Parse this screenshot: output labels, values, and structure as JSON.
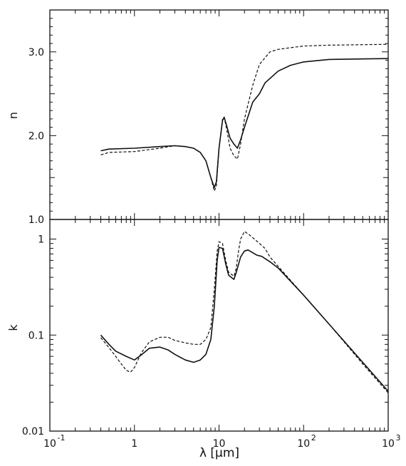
{
  "chart_data": [
    {
      "type": "line",
      "panel": "top",
      "title": "",
      "xlabel": "",
      "ylabel": "n",
      "xscale": "log",
      "yscale": "linear",
      "xlim": [
        0.1,
        1000
      ],
      "ylim": [
        1.0,
        3.5
      ],
      "yticks": [
        {
          "value": 1.0,
          "label": "1.0"
        },
        {
          "value": 2.0,
          "label": "2.0"
        },
        {
          "value": 3.0,
          "label": "3.0"
        }
      ],
      "series": [
        {
          "style": "solid",
          "points": [
            [
              0.4,
              1.82
            ],
            [
              0.5,
              1.84
            ],
            [
              1,
              1.85
            ],
            [
              2,
              1.87
            ],
            [
              3,
              1.88
            ],
            [
              4,
              1.87
            ],
            [
              5,
              1.85
            ],
            [
              6,
              1.8
            ],
            [
              7,
              1.7
            ],
            [
              8,
              1.5
            ],
            [
              8.8,
              1.38
            ],
            [
              9.3,
              1.45
            ],
            [
              10,
              1.85
            ],
            [
              11,
              2.18
            ],
            [
              11.5,
              2.22
            ],
            [
              12.3,
              2.12
            ],
            [
              13.5,
              1.97
            ],
            [
              15,
              1.9
            ],
            [
              16.5,
              1.85
            ],
            [
              18,
              1.95
            ],
            [
              20,
              2.1
            ],
            [
              25,
              2.4
            ],
            [
              30,
              2.5
            ],
            [
              35,
              2.63
            ],
            [
              50,
              2.77
            ],
            [
              70,
              2.84
            ],
            [
              100,
              2.88
            ],
            [
              200,
              2.91
            ],
            [
              1000,
              2.92
            ]
          ]
        },
        {
          "style": "dashed",
          "points": [
            [
              0.4,
              1.77
            ],
            [
              0.5,
              1.8
            ],
            [
              1,
              1.81
            ],
            [
              2,
              1.85
            ],
            [
              3,
              1.88
            ],
            [
              4,
              1.87
            ],
            [
              5,
              1.85
            ],
            [
              6,
              1.8
            ],
            [
              7,
              1.7
            ],
            [
              8,
              1.5
            ],
            [
              8.8,
              1.34
            ],
            [
              9.3,
              1.4
            ],
            [
              10,
              1.85
            ],
            [
              11,
              2.2
            ],
            [
              11.5,
              2.22
            ],
            [
              12.3,
              2.08
            ],
            [
              13.5,
              1.85
            ],
            [
              15,
              1.76
            ],
            [
              16.5,
              1.72
            ],
            [
              18,
              1.9
            ],
            [
              20,
              2.2
            ],
            [
              25,
              2.6
            ],
            [
              30,
              2.85
            ],
            [
              40,
              3.0
            ],
            [
              50,
              3.03
            ],
            [
              70,
              3.05
            ],
            [
              100,
              3.07
            ],
            [
              200,
              3.08
            ],
            [
              1000,
              3.09
            ]
          ]
        }
      ]
    },
    {
      "type": "line",
      "panel": "bottom",
      "title": "",
      "xlabel": "λ [μm]",
      "ylabel": "k",
      "xscale": "log",
      "yscale": "log",
      "xlim": [
        0.1,
        1000
      ],
      "ylim": [
        0.01,
        1.6
      ],
      "xticks": [
        {
          "value": 0.1,
          "base": "10",
          "exp": "-1"
        },
        {
          "value": 1,
          "base": "1",
          "exp": ""
        },
        {
          "value": 10,
          "base": "10",
          "exp": ""
        },
        {
          "value": 100,
          "base": "10",
          "exp": "2"
        },
        {
          "value": 1000,
          "base": "10",
          "exp": "3"
        }
      ],
      "yticks": [
        {
          "value": 0.01,
          "label": "0.01"
        },
        {
          "value": 0.1,
          "label": "0.1"
        },
        {
          "value": 1,
          "label": "1"
        }
      ],
      "series": [
        {
          "style": "solid",
          "points": [
            [
              0.4,
              0.1
            ],
            [
              0.5,
              0.08
            ],
            [
              0.6,
              0.068
            ],
            [
              0.8,
              0.06
            ],
            [
              1,
              0.055
            ],
            [
              1.2,
              0.062
            ],
            [
              1.5,
              0.073
            ],
            [
              2,
              0.075
            ],
            [
              2.5,
              0.07
            ],
            [
              3,
              0.063
            ],
            [
              4,
              0.055
            ],
            [
              5,
              0.052
            ],
            [
              6,
              0.055
            ],
            [
              7,
              0.063
            ],
            [
              8,
              0.09
            ],
            [
              8.8,
              0.2
            ],
            [
              9.5,
              0.6
            ],
            [
              10,
              0.82
            ],
            [
              11,
              0.8
            ],
            [
              12,
              0.55
            ],
            [
              13,
              0.42
            ],
            [
              15,
              0.38
            ],
            [
              16,
              0.45
            ],
            [
              18,
              0.65
            ],
            [
              20,
              0.75
            ],
            [
              22,
              0.77
            ],
            [
              25,
              0.72
            ],
            [
              28,
              0.68
            ],
            [
              32,
              0.66
            ],
            [
              40,
              0.58
            ],
            [
              50,
              0.5
            ],
            [
              100,
              0.26
            ],
            [
              200,
              0.13
            ],
            [
              500,
              0.052
            ],
            [
              1000,
              0.026
            ]
          ]
        },
        {
          "style": "dashed",
          "points": [
            [
              0.4,
              0.094
            ],
            [
              0.5,
              0.074
            ],
            [
              0.6,
              0.06
            ],
            [
              0.7,
              0.05
            ],
            [
              0.8,
              0.043
            ],
            [
              0.9,
              0.041
            ],
            [
              1,
              0.046
            ],
            [
              1.2,
              0.065
            ],
            [
              1.5,
              0.085
            ],
            [
              2,
              0.095
            ],
            [
              2.5,
              0.095
            ],
            [
              3,
              0.088
            ],
            [
              4,
              0.083
            ],
            [
              5,
              0.08
            ],
            [
              6,
              0.08
            ],
            [
              7,
              0.09
            ],
            [
              8,
              0.12
            ],
            [
              8.8,
              0.3
            ],
            [
              9.5,
              0.75
            ],
            [
              10,
              0.94
            ],
            [
              11,
              0.9
            ],
            [
              12,
              0.6
            ],
            [
              13,
              0.45
            ],
            [
              15,
              0.41
            ],
            [
              16,
              0.5
            ],
            [
              17,
              0.75
            ],
            [
              18,
              1.0
            ],
            [
              20,
              1.2
            ],
            [
              23,
              1.1
            ],
            [
              28,
              0.95
            ],
            [
              35,
              0.8
            ],
            [
              40,
              0.65
            ],
            [
              50,
              0.52
            ],
            [
              100,
              0.26
            ],
            [
              200,
              0.13
            ],
            [
              500,
              0.05
            ],
            [
              1000,
              0.025
            ]
          ]
        }
      ]
    }
  ]
}
